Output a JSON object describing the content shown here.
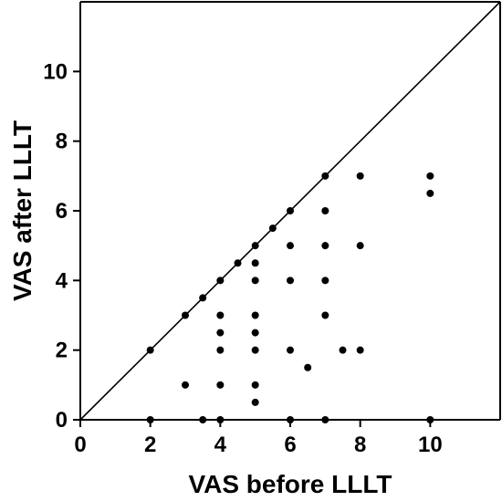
{
  "chart_data": {
    "type": "scatter",
    "title": "",
    "xlabel": "VAS before LLLT",
    "ylabel": "VAS after LLLT",
    "xlim": [
      0,
      12
    ],
    "ylim": [
      0,
      12
    ],
    "xticks": [
      0,
      2,
      4,
      6,
      8,
      10
    ],
    "yticks": [
      0,
      2,
      4,
      6,
      8,
      10
    ],
    "xtick_labels": [
      "0",
      "2",
      "4",
      "6",
      "8",
      "10"
    ],
    "ytick_labels": [
      "0",
      "2",
      "4",
      "6",
      "8",
      "10"
    ],
    "grid": false,
    "reference_line": "identity line y = x",
    "marker_color": "#000000",
    "series": [
      {
        "points": [
          [
            2,
            2
          ],
          [
            2,
            0
          ],
          [
            3,
            3
          ],
          [
            3,
            1
          ],
          [
            3.5,
            3.5
          ],
          [
            3.5,
            0
          ],
          [
            4,
            4
          ],
          [
            4,
            3
          ],
          [
            4,
            2.5
          ],
          [
            4,
            2
          ],
          [
            4,
            1
          ],
          [
            4,
            0
          ],
          [
            4.5,
            4.5
          ],
          [
            5,
            5
          ],
          [
            5,
            4.5
          ],
          [
            5,
            4
          ],
          [
            5,
            3
          ],
          [
            5,
            2.5
          ],
          [
            5,
            2
          ],
          [
            5,
            1
          ],
          [
            5,
            0.5
          ],
          [
            5.5,
            5.5
          ],
          [
            6,
            6
          ],
          [
            6,
            5
          ],
          [
            6,
            4
          ],
          [
            6,
            2
          ],
          [
            6,
            0
          ],
          [
            6.5,
            1.5
          ],
          [
            7,
            7
          ],
          [
            7,
            6
          ],
          [
            7,
            5
          ],
          [
            7,
            4
          ],
          [
            7,
            3
          ],
          [
            7,
            0
          ],
          [
            7.5,
            2
          ],
          [
            8,
            7
          ],
          [
            8,
            5
          ],
          [
            8,
            2
          ],
          [
            10,
            7
          ],
          [
            10,
            6.5
          ],
          [
            10,
            0
          ]
        ]
      }
    ]
  }
}
